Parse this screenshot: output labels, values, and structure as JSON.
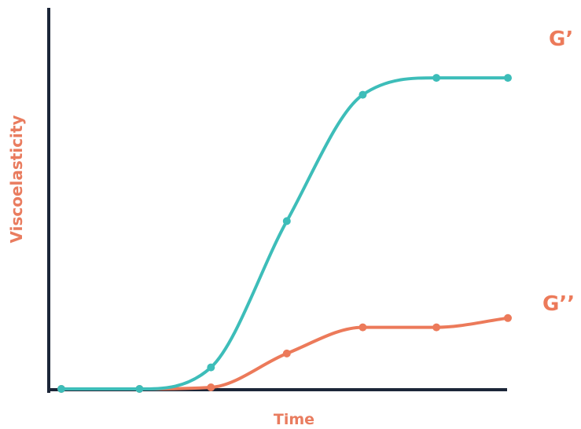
{
  "chart_data": {
    "type": "line",
    "title": "",
    "xlabel": "Time",
    "ylabel": "Viscoelasticity",
    "xlim": [
      0,
      10
    ],
    "ylim": [
      0,
      10
    ],
    "grid": false,
    "axis_ticks": false,
    "legend": "inline labels at right",
    "colors": {
      "axis": "#1c2638",
      "label": "#e97c5f"
    },
    "series": [
      {
        "name": "G’",
        "color": "#3dbdb9",
        "x": [
          0,
          1.75,
          3.35,
          5.05,
          6.75,
          8.4,
          10
        ],
        "y": [
          0,
          0,
          0.7,
          5.45,
          9.55,
          10.1,
          10.1
        ]
      },
      {
        "name": "G’’",
        "color": "#ec7a5a",
        "x": [
          0,
          1.75,
          3.35,
          5.05,
          6.75,
          8.4,
          10
        ],
        "y": [
          0,
          0,
          0.05,
          1.15,
          2.0,
          2.0,
          2.3
        ]
      }
    ]
  }
}
